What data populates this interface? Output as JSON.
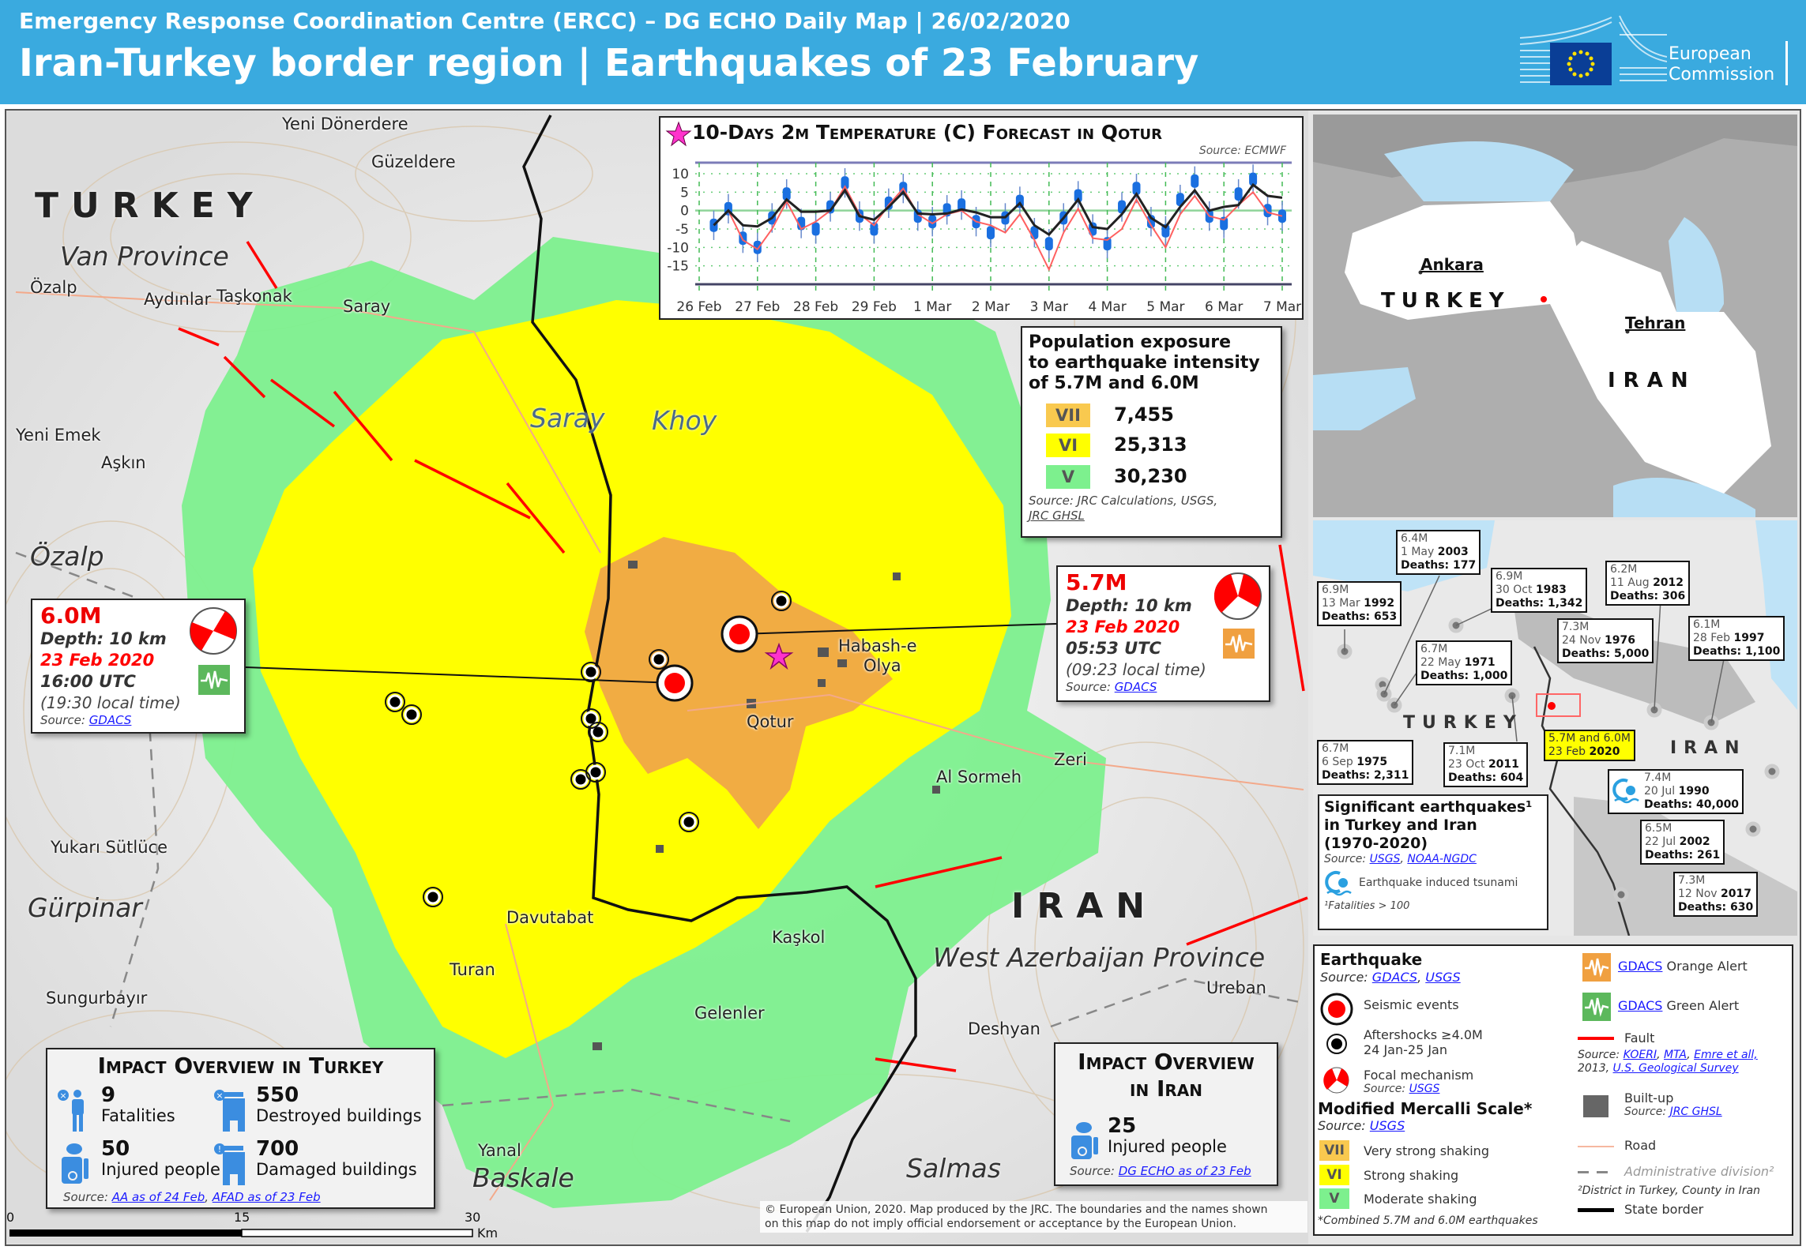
{
  "header": {
    "subtitle": "Emergency Response Coordination Centre (ERCC) – DG ECHO Daily Map | 26/02/2020",
    "title": "Iran-Turkey border region | Earthquakes of 23 February",
    "logo_text_1": "European",
    "logo_text_2": "Commission"
  },
  "colors": {
    "header_blue": "#3aaadf",
    "mmi_vii": "#f9c94f",
    "mmi_vi": "#ffff00",
    "mmi_v": "#7df08e",
    "gdacs_orange": "#f0a040",
    "gdacs_green": "#5cb85c",
    "fault": "#ff0000"
  },
  "map": {
    "places": [
      "Yeni Dönerdere",
      "Güzeldere",
      "Özalp",
      "Aydınlar",
      "Taşkonak",
      "Saray",
      "Yeni Emek",
      "Aşkın",
      "Habash-e",
      "Olya",
      "Qotur",
      "Al Sormeh",
      "Zeri",
      "Yukarı Sütlüce",
      "Davutabat",
      "Kaşkol",
      "Turan",
      "Ureban",
      "Sungurbayır",
      "Gelenler",
      "Deshyan",
      "Yanal"
    ],
    "regions": [
      "Van Province",
      "Özalp",
      "Saray",
      "Khoy",
      "Gürpinar",
      "West Azerbaijan Province",
      "Baskale",
      "Salmas"
    ],
    "countries": [
      "TURKEY",
      "IRAN"
    ],
    "scale": {
      "ticks": [
        "0",
        "15",
        "30"
      ],
      "unit": "Km"
    },
    "copyright_1": "© European Union, 2020. Map produced by the JRC. The boundaries and the names shown",
    "copyright_2": "on this map do not imply official endorsement or acceptance by the European Union."
  },
  "chart_data": {
    "type": "line",
    "title": "10-Days 2m Temperature (C) Forecast in Qotur",
    "source": "Source: ECMWF",
    "ylim": [
      -20,
      13
    ],
    "yticks": [
      10,
      5,
      0,
      -5,
      -10,
      -15
    ],
    "xticks": [
      "26 Feb",
      "27 Feb",
      "28 Feb",
      "29 Feb",
      "1 Mar",
      "2 Mar",
      "3 Mar",
      "4 Mar",
      "5 Mar",
      "6 Mar",
      "7 Mar"
    ],
    "grid": true,
    "x": [
      "26 Feb 06:00",
      "26 Feb 12:00",
      "26 Feb 18:00",
      "27 Feb 00:00",
      "27 Feb 06:00",
      "27 Feb 12:00",
      "27 Feb 18:00",
      "28 Feb 00:00",
      "28 Feb 06:00",
      "28 Feb 12:00",
      "28 Feb 18:00",
      "29 Feb 00:00",
      "29 Feb 06:00",
      "29 Feb 12:00",
      "29 Feb 18:00",
      "1 Mar 00:00",
      "1 Mar 06:00",
      "1 Mar 12:00",
      "1 Mar 18:00",
      "2 Mar 00:00",
      "2 Mar 06:00",
      "2 Mar 12:00",
      "2 Mar 18:00",
      "3 Mar 00:00",
      "3 Mar 06:00",
      "3 Mar 12:00",
      "3 Mar 18:00",
      "4 Mar 00:00",
      "4 Mar 06:00",
      "4 Mar 12:00",
      "4 Mar 18:00",
      "5 Mar 00:00",
      "5 Mar 06:00",
      "5 Mar 12:00",
      "5 Mar 18:00",
      "6 Mar 00:00",
      "6 Mar 06:00",
      "6 Mar 12:00",
      "6 Mar 18:00",
      "7 Mar 00:00"
    ],
    "series": [
      {
        "color": "#222222",
        "values": [
          -4,
          0,
          -4,
          -4.3,
          -2,
          3,
          -0.3,
          -0.3,
          0,
          5.5,
          -1.5,
          -2.5,
          1,
          5,
          -0.8,
          -1,
          -0.8,
          0.3,
          -0.5,
          -1.8,
          -1.8,
          2,
          -4,
          -6.5,
          -2,
          3,
          -4.5,
          -5,
          -1,
          4.5,
          -2,
          -4.5,
          1,
          5.5,
          0,
          1,
          1.5,
          7,
          4,
          3.5
        ]
      },
      {
        "color": "#ff6060",
        "values": [
          -4,
          0,
          -8,
          -10.5,
          -5,
          2.5,
          -5,
          -3,
          0,
          6.5,
          -1,
          -4,
          1.5,
          6,
          -1,
          -3.5,
          -1,
          0,
          -3,
          -4,
          -6,
          -1,
          -8,
          -16,
          -6,
          0.5,
          -7.5,
          -8,
          -5,
          3,
          -4,
          -10,
          -1,
          4,
          -1.5,
          -2.5,
          1.5,
          5,
          -0.5,
          -1.5
        ]
      },
      {
        "color": "#1a6fe0",
        "values": [
          -4,
          0.5,
          -7.5,
          -10,
          -2,
          4.5,
          -3.5,
          -5,
          1,
          7.5,
          -1.5,
          -5,
          2,
          6,
          -1.5,
          -3,
          0.2,
          1.5,
          -3,
          -6,
          -2,
          2.5,
          -6,
          -9,
          -2,
          4,
          -5,
          -9,
          1,
          6,
          -3,
          -5.5,
          3,
          8,
          -1.5,
          -3.5,
          4.5,
          8.5,
          0,
          -1.5
        ]
      }
    ]
  },
  "population": {
    "title_1": "Population exposure",
    "title_2": "to earthquake intensity",
    "title_3": "of 5.7M and 6.0M",
    "rows": [
      {
        "mmi": "VII",
        "value": "7,455"
      },
      {
        "mmi": "VI",
        "value": "25,313"
      },
      {
        "mmi": "V",
        "value": "30,230"
      }
    ],
    "source": "Source: JRC Calculations, USGS,",
    "source_link": "JRC GHSL"
  },
  "quakes": [
    {
      "mag": "6.0M",
      "depth": "Depth: 10 km",
      "date": "23 Feb 2020",
      "utc": "16:00 UTC",
      "local": "(19:30 local time)",
      "source": "Source:",
      "link": "GDACS",
      "alert": "green"
    },
    {
      "mag": "5.7M",
      "depth": "Depth: 10 km",
      "date": "23 Feb 2020",
      "utc": "05:53 UTC",
      "local": "(09:23 local time)",
      "source": "Source:",
      "link": "GDACS",
      "alert": "orange"
    }
  ],
  "impact_turkey": {
    "title": "Impact Overview in Turkey",
    "items": [
      {
        "value": "9",
        "label": "Fatalities"
      },
      {
        "value": "550",
        "label": "Destroyed buildings"
      },
      {
        "value": "50",
        "label": "Injured people"
      },
      {
        "value": "700",
        "label": "Damaged buildings"
      }
    ],
    "source": "Source:",
    "link_1": "AA as of 24 Feb",
    "link_2": "AFAD as of 23 Feb"
  },
  "impact_iran": {
    "title_1": "Impact Overview",
    "title_2": "in Iran",
    "value": "25",
    "label": "Injured people",
    "source": "Source:",
    "link": "DG ECHO as of 23 Feb"
  },
  "overview": {
    "ankara": "Ankara",
    "turkey": "TURKEY",
    "tehran": "Tehran",
    "iran": "IRAN"
  },
  "history": {
    "turkey": "TURKEY",
    "iran": "IRAN",
    "events": [
      {
        "mag": "6.4M",
        "date": "1 May",
        "year": "2003",
        "deaths": "Deaths: 177"
      },
      {
        "mag": "6.9M",
        "date": "13 Mar",
        "year": "1992",
        "deaths": "Deaths: 653"
      },
      {
        "mag": "6.9M",
        "date": "30 Oct",
        "year": "1983",
        "deaths": "Deaths: 1,342"
      },
      {
        "mag": "6.2M",
        "date": "11 Aug",
        "year": "2012",
        "deaths": "Deaths: 306"
      },
      {
        "mag": "7.3M",
        "date": "24 Nov",
        "year": "1976",
        "deaths": "Deaths: 5,000"
      },
      {
        "mag": "6.1M",
        "date": "28 Feb",
        "year": "1997",
        "deaths": "Deaths: 1,100"
      },
      {
        "mag": "6.7M",
        "date": "22 May",
        "year": "1971",
        "deaths": "Deaths: 1,000"
      },
      {
        "mag": "6.7M",
        "date": "6 Sep",
        "year": "1975",
        "deaths": "Deaths: 2,311"
      },
      {
        "mag": "7.1M",
        "date": "23 Oct",
        "year": "2011",
        "deaths": "Deaths: 604"
      },
      {
        "mag": "7.4M",
        "date": "20 Jul",
        "year": "1990",
        "deaths": "Deaths: 40,000"
      },
      {
        "mag": "6.5M",
        "date": "22 Jul",
        "year": "2002",
        "deaths": "Deaths: 261"
      },
      {
        "mag": "7.3M",
        "date": "12 Nov",
        "year": "2017",
        "deaths": "Deaths: 630"
      }
    ],
    "current_1": "5.7M and 6.0M",
    "current_2": "23 Feb",
    "current_year": "2020",
    "title_1": "Significant earthquakes¹",
    "title_2": "in Turkey and Iran",
    "title_3": "(1970-2020)",
    "source": "Source:",
    "link_1": "USGS",
    "link_2": "NOAA-NGDC",
    "tsunami": "Earthquake induced tsunami",
    "footnote": "¹Fatalities > 100"
  },
  "legend": {
    "earthquake": "Earthquake",
    "eq_source": "Source:",
    "eq_link_1": "GDACS",
    "eq_link_2": "USGS",
    "seismic": "Seismic events",
    "aftershocks_1": "Aftershocks ≥4.0M",
    "aftershocks_2": "24 Jan-25 Jan",
    "focal": "Focal mechanism",
    "focal_source": "Source:",
    "focal_link": "USGS",
    "mmi_title": "Modified Mercalli Scale*",
    "mmi_source": "Source:",
    "mmi_link": "USGS",
    "mmi": [
      {
        "code": "VII",
        "label": "Very strong shaking"
      },
      {
        "code": "VI",
        "label": "Strong shaking"
      },
      {
        "code": "V",
        "label": "Moderate shaking"
      }
    ],
    "mmi_note": "*Combined 5.7M and 6.0M earthquakes",
    "gdacs": "GDACS",
    "orange_alert": "Orange Alert",
    "green_alert": "Green Alert",
    "fault": "Fault",
    "fault_source": "Source:",
    "fault_link_1": "KOERI",
    "fault_link_2": "MTA",
    "fault_link_3": "Emre et all,",
    "fault_year": "2013,",
    "fault_link_4": "U.S. Geological Survey",
    "builtup": "Built-up",
    "builtup_source": "Source:",
    "builtup_link": "JRC GHSL",
    "road": "Road",
    "admin": "Administrative division²",
    "admin_note": "²District in Turkey, County in Iran",
    "state_border": "State border"
  }
}
